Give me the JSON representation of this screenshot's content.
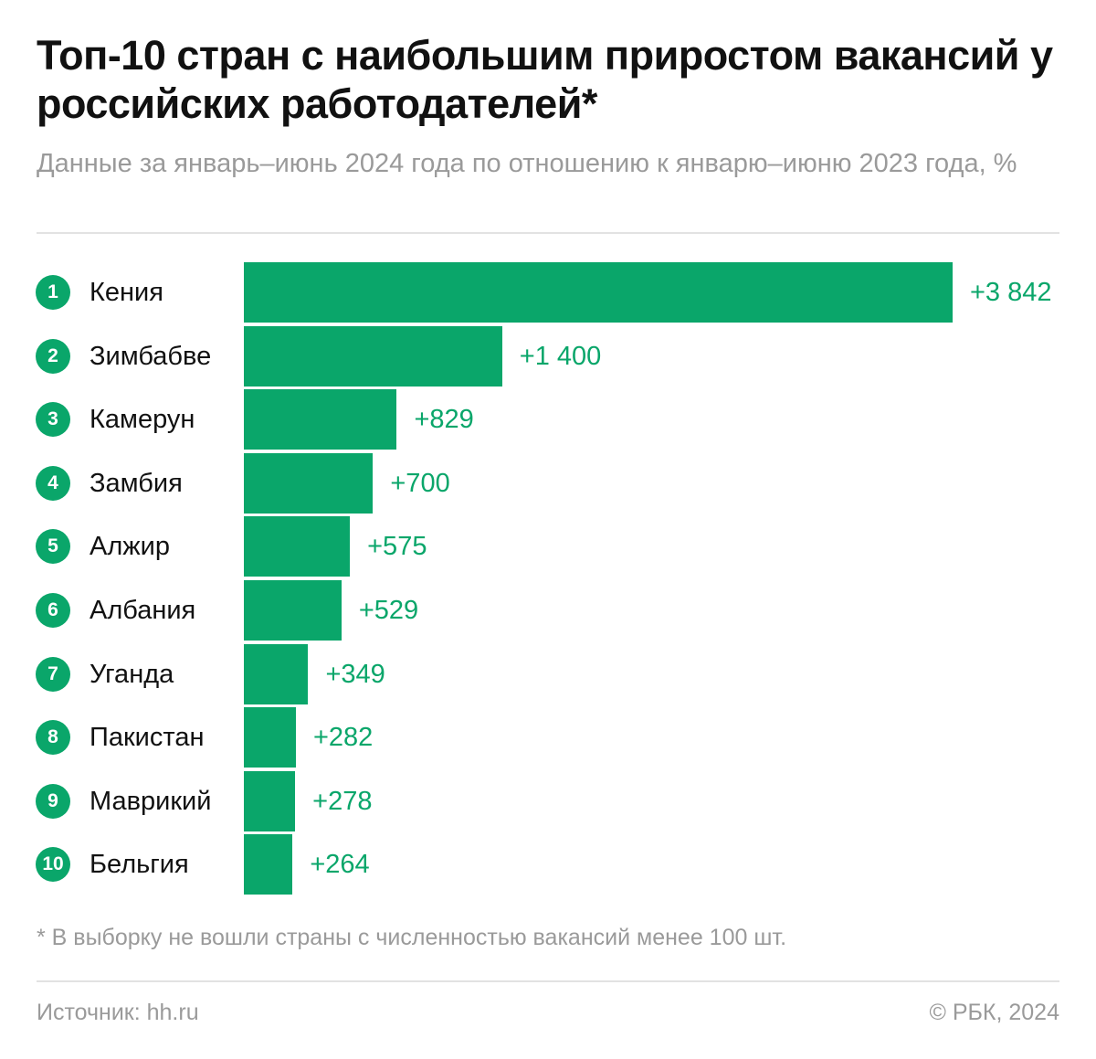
{
  "title": "Топ-10 стран с наибольшим приростом вакансий у российских работодателей*",
  "subtitle": "Данные за январь–июнь 2024 года по отношению к январю–июню 2023 года, %",
  "footnote": "* В выборку не вошли страны с численностью вакансий менее 100 шт.",
  "source": "Источник: hh.ru",
  "credit": "© РБК, 2024",
  "colors": {
    "bar": "#0aa66a",
    "label": "#0aa66a"
  },
  "chart_data": {
    "type": "bar",
    "orientation": "horizontal",
    "title": "Топ-10 стран с наибольшим приростом вакансий у российских работодателей*",
    "subtitle": "Данные за январь–июнь 2024 года по отношению к январю–июню 2023 года, %",
    "categories": [
      "Кения",
      "Зимбабве",
      "Камерун",
      "Замбия",
      "Алжир",
      "Албания",
      "Уганда",
      "Пакистан",
      "Маврикий",
      "Бельгия"
    ],
    "ranks": [
      "1",
      "2",
      "3",
      "4",
      "5",
      "6",
      "7",
      "8",
      "9",
      "10"
    ],
    "values": [
      3842,
      1400,
      829,
      700,
      575,
      529,
      349,
      282,
      278,
      264
    ],
    "labels": [
      "+3 842",
      "+1 400",
      "+829",
      "+700",
      "+575",
      "+529",
      "+349",
      "+282",
      "+278",
      "+264"
    ],
    "grid": false,
    "axes_visible": false
  }
}
